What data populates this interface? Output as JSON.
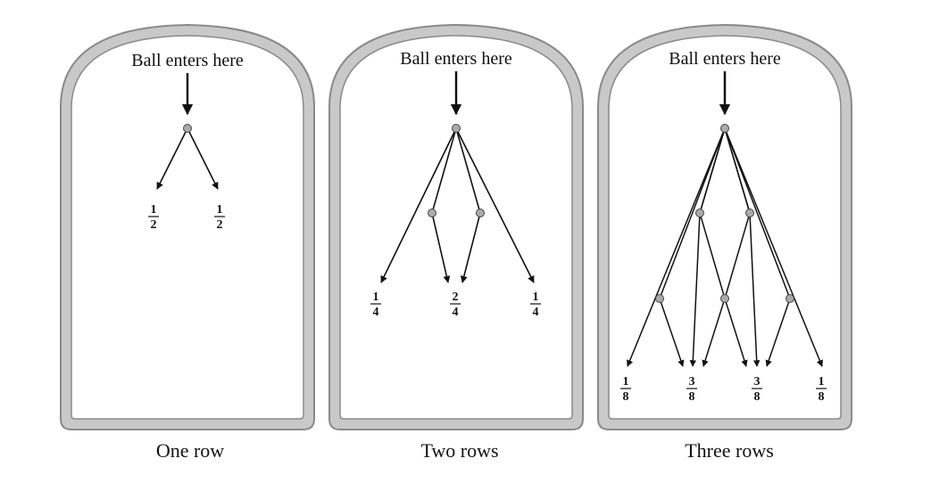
{
  "panels": [
    {
      "entry_label": "Ball enters here",
      "caption": "One row",
      "outcomes": [
        {
          "numerator": "1",
          "denominator": "2"
        },
        {
          "numerator": "1",
          "denominator": "2"
        }
      ]
    },
    {
      "entry_label": "Ball enters here",
      "caption": "Two rows",
      "outcomes": [
        {
          "numerator": "1",
          "denominator": "4"
        },
        {
          "numerator": "2",
          "denominator": "4"
        },
        {
          "numerator": "1",
          "denominator": "4"
        }
      ]
    },
    {
      "entry_label": "Ball enters here",
      "caption": "Three rows",
      "outcomes": [
        {
          "numerator": "1",
          "denominator": "8"
        },
        {
          "numerator": "3",
          "denominator": "8"
        },
        {
          "numerator": "3",
          "denominator": "8"
        },
        {
          "numerator": "1",
          "denominator": "8"
        }
      ]
    }
  ]
}
